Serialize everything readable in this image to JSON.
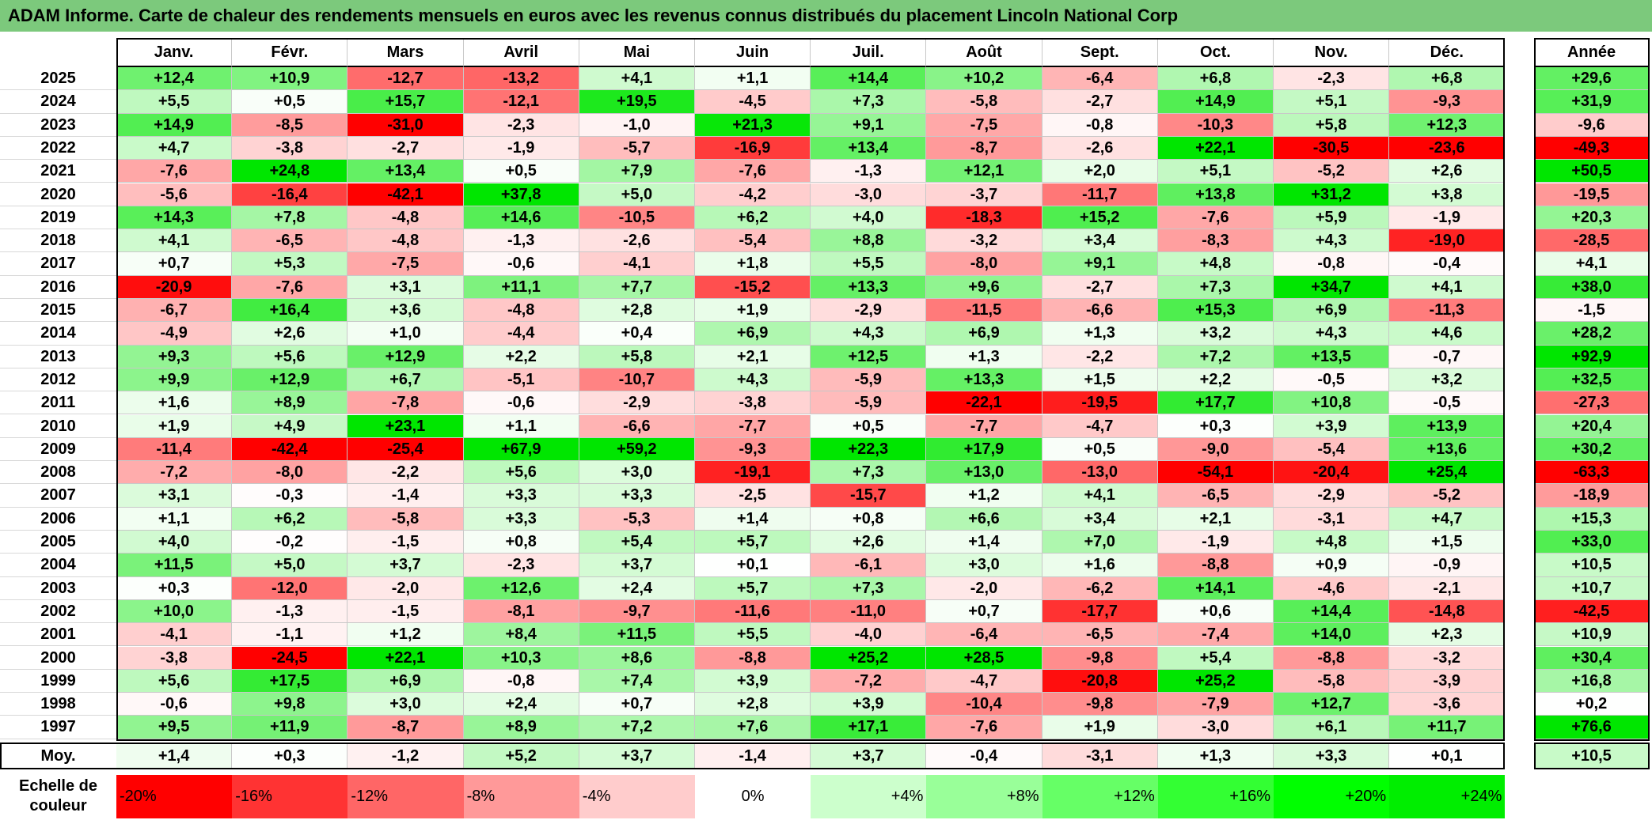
{
  "title": "ADAM Informe. Carte de chaleur des rendements mensuels en euros avec les revenus connus distribués du placement Lincoln National Corp",
  "chart_data": {
    "type": "heatmap",
    "title": "ADAM Informe. Carte de chaleur des rendements mensuels en euros avec les revenus connus distribués du placement Lincoln National Corp",
    "columns": [
      "Janv.",
      "Févr.",
      "Mars",
      "Avril",
      "Mai",
      "Juin",
      "Juil.",
      "Août",
      "Sept.",
      "Oct.",
      "Nov.",
      "Déc."
    ],
    "year_column": "Année",
    "rows": [
      {
        "year": "2025",
        "values": [
          "+12,4",
          "+10,9",
          "-12,7",
          "-13,2",
          "+4,1",
          "+1,1",
          "+14,4",
          "+10,2",
          "-6,4",
          "+6,8",
          "-2,3",
          "+6,8"
        ],
        "total": "+29,6"
      },
      {
        "year": "2024",
        "values": [
          "+5,5",
          "+0,5",
          "+15,7",
          "-12,1",
          "+19,5",
          "-4,5",
          "+7,3",
          "-5,8",
          "-2,7",
          "+14,9",
          "+5,1",
          "-9,3"
        ],
        "total": "+31,9"
      },
      {
        "year": "2023",
        "values": [
          "+14,9",
          "-8,5",
          "-31,0",
          "-2,3",
          "-1,0",
          "+21,3",
          "+9,1",
          "-7,5",
          "-0,8",
          "-10,3",
          "+5,8",
          "+12,3"
        ],
        "total": "-9,6"
      },
      {
        "year": "2022",
        "values": [
          "+4,7",
          "-3,8",
          "-2,7",
          "-1,9",
          "-5,7",
          "-16,9",
          "+13,4",
          "-8,7",
          "-2,6",
          "+22,1",
          "-30,5",
          "-23,6"
        ],
        "total": "-49,3"
      },
      {
        "year": "2021",
        "values": [
          "-7,6",
          "+24,8",
          "+13,4",
          "+0,5",
          "+7,9",
          "-7,6",
          "-1,3",
          "+12,1",
          "+2,0",
          "+5,1",
          "-5,2",
          "+2,6"
        ],
        "total": "+50,5"
      },
      {
        "year": "2020",
        "values": [
          "-5,6",
          "-16,4",
          "-42,1",
          "+37,8",
          "+5,0",
          "-4,2",
          "-3,0",
          "-3,7",
          "-11,7",
          "+13,8",
          "+31,2",
          "+3,8"
        ],
        "total": "-19,5"
      },
      {
        "year": "2019",
        "values": [
          "+14,3",
          "+7,8",
          "-4,8",
          "+14,6",
          "-10,5",
          "+6,2",
          "+4,0",
          "-18,3",
          "+15,2",
          "-7,6",
          "+5,9",
          "-1,9"
        ],
        "total": "+20,3"
      },
      {
        "year": "2018",
        "values": [
          "+4,1",
          "-6,5",
          "-4,8",
          "-1,3",
          "-2,6",
          "-5,4",
          "+8,8",
          "-3,2",
          "+3,4",
          "-8,3",
          "+4,3",
          "-19,0"
        ],
        "total": "-28,5"
      },
      {
        "year": "2017",
        "values": [
          "+0,7",
          "+5,3",
          "-7,5",
          "-0,6",
          "-4,1",
          "+1,8",
          "+5,5",
          "-8,0",
          "+9,1",
          "+4,8",
          "-0,8",
          "-0,4"
        ],
        "total": "+4,1"
      },
      {
        "year": "2016",
        "values": [
          "-20,9",
          "-7,6",
          "+3,1",
          "+11,1",
          "+7,7",
          "-15,2",
          "+13,3",
          "+9,6",
          "-2,7",
          "+7,3",
          "+34,7",
          "+4,1"
        ],
        "total": "+38,0"
      },
      {
        "year": "2015",
        "values": [
          "-6,7",
          "+16,4",
          "+3,6",
          "-4,8",
          "+2,8",
          "+1,9",
          "-2,9",
          "-11,5",
          "-6,6",
          "+15,3",
          "+6,9",
          "-11,3"
        ],
        "total": "-1,5"
      },
      {
        "year": "2014",
        "values": [
          "-4,9",
          "+2,6",
          "+1,0",
          "-4,4",
          "+0,4",
          "+6,9",
          "+4,3",
          "+6,9",
          "+1,3",
          "+3,2",
          "+4,3",
          "+4,6"
        ],
        "total": "+28,2"
      },
      {
        "year": "2013",
        "values": [
          "+9,3",
          "+5,6",
          "+12,9",
          "+2,2",
          "+5,8",
          "+2,1",
          "+12,5",
          "+1,3",
          "-2,2",
          "+7,2",
          "+13,5",
          "-0,7"
        ],
        "total": "+92,9"
      },
      {
        "year": "2012",
        "values": [
          "+9,9",
          "+12,9",
          "+6,7",
          "-5,1",
          "-10,7",
          "+4,3",
          "-5,9",
          "+13,3",
          "+1,5",
          "+2,2",
          "-0,5",
          "+3,2"
        ],
        "total": "+32,5"
      },
      {
        "year": "2011",
        "values": [
          "+1,6",
          "+8,9",
          "-7,8",
          "-0,6",
          "-2,9",
          "-3,8",
          "-5,9",
          "-22,1",
          "-19,5",
          "+17,7",
          "+10,8",
          "-0,5"
        ],
        "total": "-27,3"
      },
      {
        "year": "2010",
        "values": [
          "+1,9",
          "+4,9",
          "+23,1",
          "+1,1",
          "-6,6",
          "-7,7",
          "+0,5",
          "-7,7",
          "-4,7",
          "+0,3",
          "+3,9",
          "+13,9"
        ],
        "total": "+20,4"
      },
      {
        "year": "2009",
        "values": [
          "-11,4",
          "-42,4",
          "-25,4",
          "+67,9",
          "+59,2",
          "-9,3",
          "+22,3",
          "+17,9",
          "+0,5",
          "-9,0",
          "-5,4",
          "+13,6"
        ],
        "total": "+30,2"
      },
      {
        "year": "2008",
        "values": [
          "-7,2",
          "-8,0",
          "-2,2",
          "+5,6",
          "+3,0",
          "-19,1",
          "+7,3",
          "+13,0",
          "-13,0",
          "-54,1",
          "-20,4",
          "+25,4"
        ],
        "total": "-63,3"
      },
      {
        "year": "2007",
        "values": [
          "+3,1",
          "-0,3",
          "-1,4",
          "+3,3",
          "+3,3",
          "-2,5",
          "-15,7",
          "+1,2",
          "+4,1",
          "-6,5",
          "-2,9",
          "-5,2"
        ],
        "total": "-18,9"
      },
      {
        "year": "2006",
        "values": [
          "+1,1",
          "+6,2",
          "-5,8",
          "+3,3",
          "-5,3",
          "+1,4",
          "+0,8",
          "+6,6",
          "+3,4",
          "+2,1",
          "-3,1",
          "+4,7"
        ],
        "total": "+15,3"
      },
      {
        "year": "2005",
        "values": [
          "+4,0",
          "-0,2",
          "-1,5",
          "+0,8",
          "+5,4",
          "+5,7",
          "+2,6",
          "+1,4",
          "+7,0",
          "-1,9",
          "+4,8",
          "+1,5"
        ],
        "total": "+33,0"
      },
      {
        "year": "2004",
        "values": [
          "+11,5",
          "+5,0",
          "+3,7",
          "-2,3",
          "+3,7",
          "+0,1",
          "-6,1",
          "+3,0",
          "+1,6",
          "-8,8",
          "+0,9",
          "-0,9"
        ],
        "total": "+10,5"
      },
      {
        "year": "2003",
        "values": [
          "+0,3",
          "-12,0",
          "-2,0",
          "+12,6",
          "+2,4",
          "+5,7",
          "+7,3",
          "-2,0",
          "-6,2",
          "+14,1",
          "-4,6",
          "-2,1"
        ],
        "total": "+10,7"
      },
      {
        "year": "2002",
        "values": [
          "+10,0",
          "-1,3",
          "-1,5",
          "-8,1",
          "-9,7",
          "-11,6",
          "-11,0",
          "+0,7",
          "-17,7",
          "+0,6",
          "+14,4",
          "-14,8"
        ],
        "total": "-42,5"
      },
      {
        "year": "2001",
        "values": [
          "-4,1",
          "-1,1",
          "+1,2",
          "+8,4",
          "+11,5",
          "+5,5",
          "-4,0",
          "-6,4",
          "-6,5",
          "-7,4",
          "+14,0",
          "+2,3"
        ],
        "total": "+10,9"
      },
      {
        "year": "2000",
        "values": [
          "-3,8",
          "-24,5",
          "+22,1",
          "+10,3",
          "+8,6",
          "-8,8",
          "+25,2",
          "+28,5",
          "-9,8",
          "+5,4",
          "-8,8",
          "-3,2"
        ],
        "total": "+30,4"
      },
      {
        "year": "1999",
        "values": [
          "+5,6",
          "+17,5",
          "+6,9",
          "-0,8",
          "+7,4",
          "+3,9",
          "-7,2",
          "-4,7",
          "-20,8",
          "+25,2",
          "-5,8",
          "-3,9"
        ],
        "total": "+16,8"
      },
      {
        "year": "1998",
        "values": [
          "-0,6",
          "+9,8",
          "+3,0",
          "+2,4",
          "+0,7",
          "+2,8",
          "+3,9",
          "-10,4",
          "-9,8",
          "-7,9",
          "+12,7",
          "-3,6"
        ],
        "total": "+0,2"
      },
      {
        "year": "1997",
        "values": [
          "+9,5",
          "+11,9",
          "-8,7",
          "+8,9",
          "+7,2",
          "+7,6",
          "+17,1",
          "-7,6",
          "+1,9",
          "-3,0",
          "+6,1",
          "+11,7"
        ],
        "total": "+76,6"
      }
    ],
    "average": {
      "label": "Moy.",
      "values": [
        "+1,4",
        "+0,3",
        "-1,2",
        "+5,2",
        "+3,7",
        "-1,4",
        "+3,7",
        "-0,4",
        "-3,1",
        "+1,3",
        "+3,3",
        "+0,1"
      ],
      "total": "+10,5"
    },
    "scale": {
      "label": "Echelle de couleur",
      "items": [
        {
          "text": "-20%",
          "color": "#ff0000"
        },
        {
          "text": "-16%",
          "color": "#ff3333"
        },
        {
          "text": "-12%",
          "color": "#ff6666"
        },
        {
          "text": "-8%",
          "color": "#ff9999"
        },
        {
          "text": "-4%",
          "color": "#ffcccc"
        },
        {
          "text": "0%",
          "color": "#ffffff"
        },
        {
          "text": "+4%",
          "color": "#ccffcc"
        },
        {
          "text": "+8%",
          "color": "#99ff99"
        },
        {
          "text": "+12%",
          "color": "#66ff66"
        },
        {
          "text": "+16%",
          "color": "#33ff33"
        },
        {
          "text": "+20%",
          "color": "#00ff00"
        },
        {
          "text": "+24%",
          "color": "#00ee00"
        }
      ]
    }
  }
}
